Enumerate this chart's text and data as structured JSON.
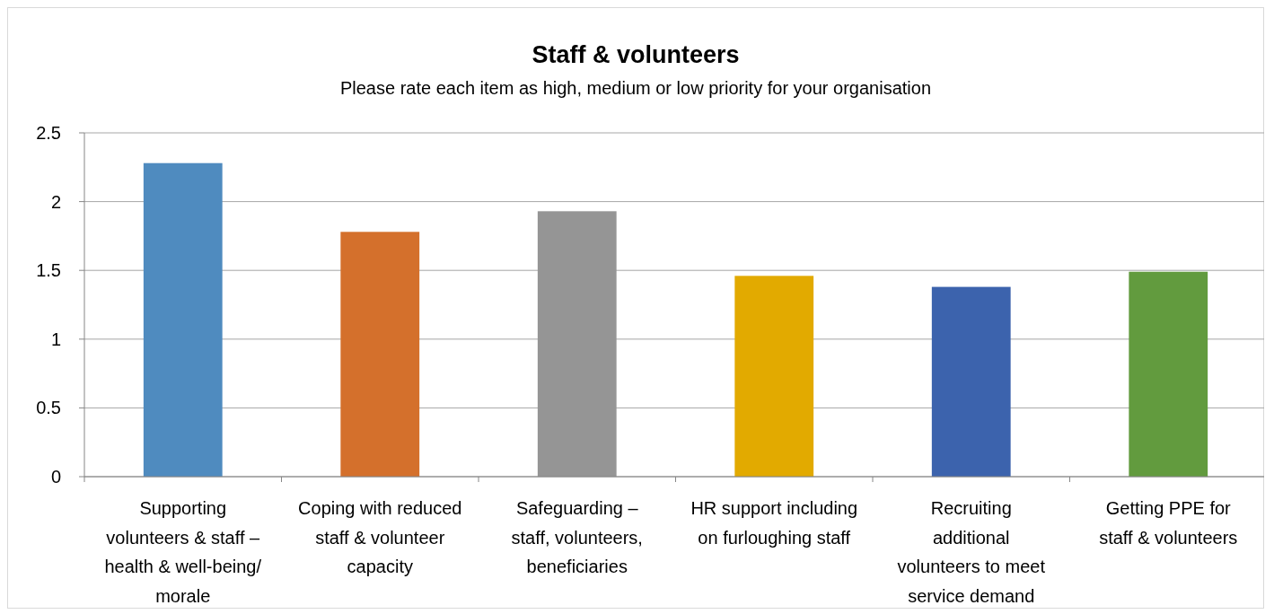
{
  "chart_data": {
    "type": "bar",
    "title": "Staff & volunteers",
    "subtitle": "Please rate each item as high, medium or low priority for your organisation",
    "categories": [
      "Supporting volunteers & staff – health & well-being/ morale",
      "Coping with reduced staff & volunteer capacity",
      "Safeguarding – staff, volunteers, beneficiaries",
      "HR support including on furloughing staff",
      "Recruiting additional volunteers to meet service demand",
      "Getting PPE for staff & volunteers"
    ],
    "values": [
      2.28,
      1.78,
      1.93,
      1.46,
      1.38,
      1.49
    ],
    "colors": [
      "#4f8bbf",
      "#d4702c",
      "#959595",
      "#e2aa00",
      "#3c63ad",
      "#629b3e"
    ],
    "ylim": [
      0,
      2.5
    ],
    "yticks": [
      0,
      0.5,
      1,
      1.5,
      2,
      2.5
    ],
    "grid": "y"
  }
}
